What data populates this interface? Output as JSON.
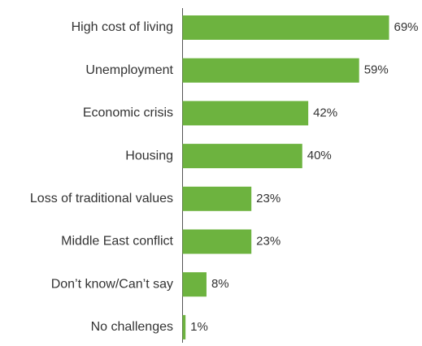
{
  "chart_data": {
    "type": "bar",
    "orientation": "horizontal",
    "categories": [
      "High cost of living",
      "Unemployment",
      "Economic crisis",
      "Housing",
      "Loss of traditional values",
      "Middle East conflict",
      "Don’t know/Can’t say",
      "No challenges"
    ],
    "values": [
      69,
      59,
      42,
      40,
      23,
      23,
      8,
      1
    ],
    "value_labels": [
      "69%",
      "59%",
      "42%",
      "40%",
      "23%",
      "23%",
      "8%",
      "1%"
    ],
    "unit": "%",
    "xlim": [
      0,
      69
    ],
    "grid": false,
    "colors": {
      "bar": "#6db33f",
      "axis": "#555555",
      "text": "#333333"
    }
  }
}
